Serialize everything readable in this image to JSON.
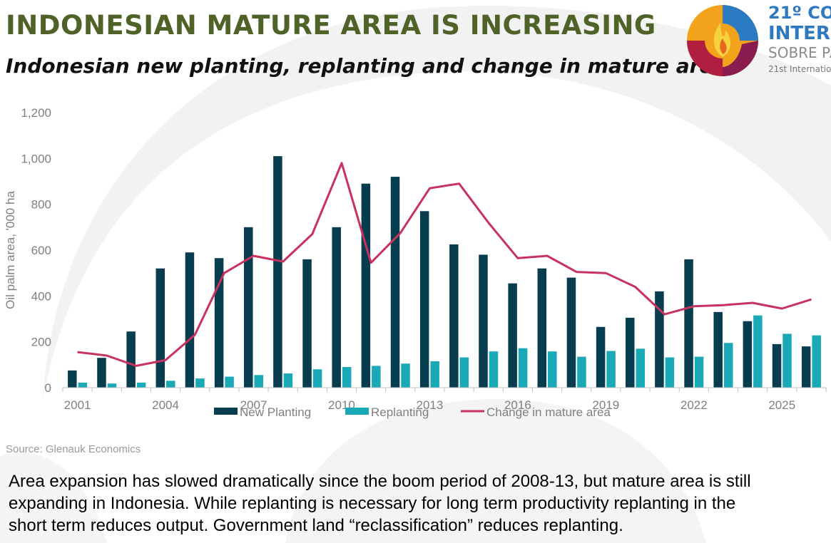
{
  "header": {
    "title": "INDONESIAN MATURE AREA IS INCREASING",
    "subtitle": "Indonesian new planting, replanting and change in mature area"
  },
  "logo": {
    "line1": "21º CO",
    "line2": "INTER",
    "line3": "SOBRE PA",
    "line4": "21st Internatio"
  },
  "chart_data": {
    "type": "bar",
    "ylabel": "Oil palm area, '000 ha",
    "ylim": [
      0,
      1200
    ],
    "yticks": [
      0,
      200,
      400,
      600,
      800,
      1000,
      1200
    ],
    "ytick_labels": [
      "0",
      "200",
      "400",
      "600",
      "800",
      "1,000",
      "1,200"
    ],
    "categories": [
      2001,
      2002,
      2003,
      2004,
      2005,
      2006,
      2007,
      2008,
      2009,
      2010,
      2011,
      2012,
      2013,
      2014,
      2015,
      2016,
      2017,
      2018,
      2019,
      2020,
      2021,
      2022,
      2023,
      2024,
      2025,
      2026
    ],
    "xtick_labels": [
      "2001",
      "2004",
      "2007",
      "2010",
      "2013",
      "2016",
      "2019",
      "2022",
      "2025"
    ],
    "series": [
      {
        "name": "New Planting",
        "kind": "bar",
        "color": "#073d4e",
        "values": [
          75,
          130,
          245,
          520,
          590,
          565,
          700,
          1010,
          560,
          700,
          890,
          920,
          770,
          625,
          580,
          455,
          520,
          480,
          265,
          305,
          420,
          560,
          330,
          290,
          190,
          180
        ]
      },
      {
        "name": "Replanting",
        "kind": "bar",
        "color": "#19a9b7",
        "values": [
          22,
          18,
          22,
          30,
          40,
          48,
          55,
          62,
          80,
          90,
          95,
          105,
          115,
          132,
          158,
          172,
          158,
          135,
          160,
          170,
          132,
          135,
          195,
          315,
          235,
          228
        ]
      },
      {
        "name": "Change in mature area",
        "kind": "line",
        "color": "#c8325f",
        "values": [
          155,
          140,
          95,
          120,
          230,
          500,
          575,
          550,
          670,
          980,
          545,
          675,
          870,
          890,
          720,
          565,
          575,
          505,
          500,
          440,
          320,
          355,
          360,
          370,
          345,
          385
        ]
      }
    ]
  },
  "source": "Source: Glenauk Economics",
  "body": {
    "line1": "Area expansion has slowed dramatically since the boom period of 2008-13, but mature area is still",
    "line2": "expanding in Indonesia. While replanting is necessary for long term productivity replanting in the",
    "line3": "short term reduces output. Government land “reclassification” reduces replanting."
  }
}
